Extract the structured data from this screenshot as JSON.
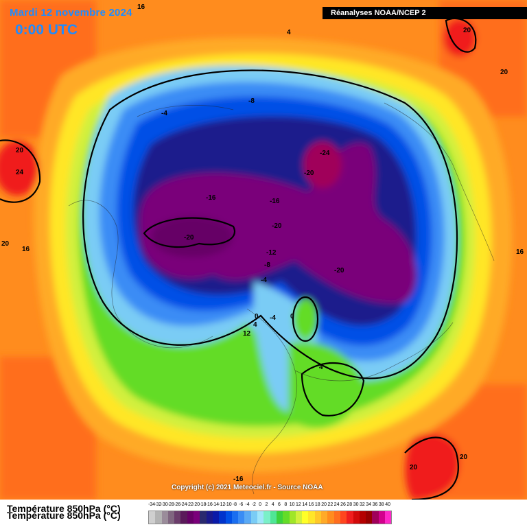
{
  "header": {
    "date": "Mardi 12 novembre 2024",
    "time": "0:00 UTC",
    "source": "Réanalyses NOAA/NCEP 2"
  },
  "copyright": "Copyright (c) 2021 Meteociel.fr - Source NOAA",
  "legend": {
    "title": "Température 850hPa (°C)",
    "values": [
      "-34",
      "-32",
      "-30",
      "-28",
      "-26",
      "-24",
      "-22",
      "-20",
      "-18",
      "-16",
      "-14",
      "-12",
      "-10",
      "-8",
      "-6",
      "-4",
      "-2",
      "0",
      "2",
      "4",
      "6",
      "8",
      "10",
      "12",
      "14",
      "16",
      "18",
      "20",
      "22",
      "24",
      "26",
      "28",
      "30",
      "32",
      "34",
      "36",
      "38",
      "40"
    ],
    "colors": [
      "#cfcfcf",
      "#b3b3b3",
      "#9a8c9a",
      "#806680",
      "#6b3d6b",
      "#5a1a5a",
      "#660066",
      "#7a007a",
      "#2a2a6e",
      "#1a1a8c",
      "#0a1aa8",
      "#0033cc",
      "#0050e6",
      "#1a6ef0",
      "#3a8cf5",
      "#5aaaf5",
      "#7accf5",
      "#a0e6fa",
      "#7af0c8",
      "#50e696",
      "#3cd23c",
      "#64dc28",
      "#a0e628",
      "#d2f03c",
      "#ffff28",
      "#ffe628",
      "#ffc828",
      "#ffaa28",
      "#ff8c1e",
      "#ff6e1e",
      "#ff461e",
      "#f01e1e",
      "#d20a0a",
      "#b40000",
      "#960000",
      "#a0005a",
      "#d2008c",
      "#ff28c8"
    ]
  },
  "labels": {
    "l1": "16",
    "l2": "4",
    "l3": "20",
    "l4": "20",
    "l5": "-8",
    "l6": "-4",
    "l7": "20",
    "l8": "24",
    "l9": "-24",
    "l10": "-20",
    "l11": "-16",
    "l12": "-16",
    "l13": "-20",
    "l14": "-20",
    "l15": "20",
    "l16": "16",
    "l17": "-12",
    "l18": "-8",
    "l19": "-4",
    "l20": "-20",
    "l21": "16",
    "l22": "0",
    "l23": "-4",
    "l24": "0",
    "l25": "4",
    "l26": "12",
    "l27": "4",
    "l28": "20",
    "l29": "20",
    "l30": "-16"
  }
}
